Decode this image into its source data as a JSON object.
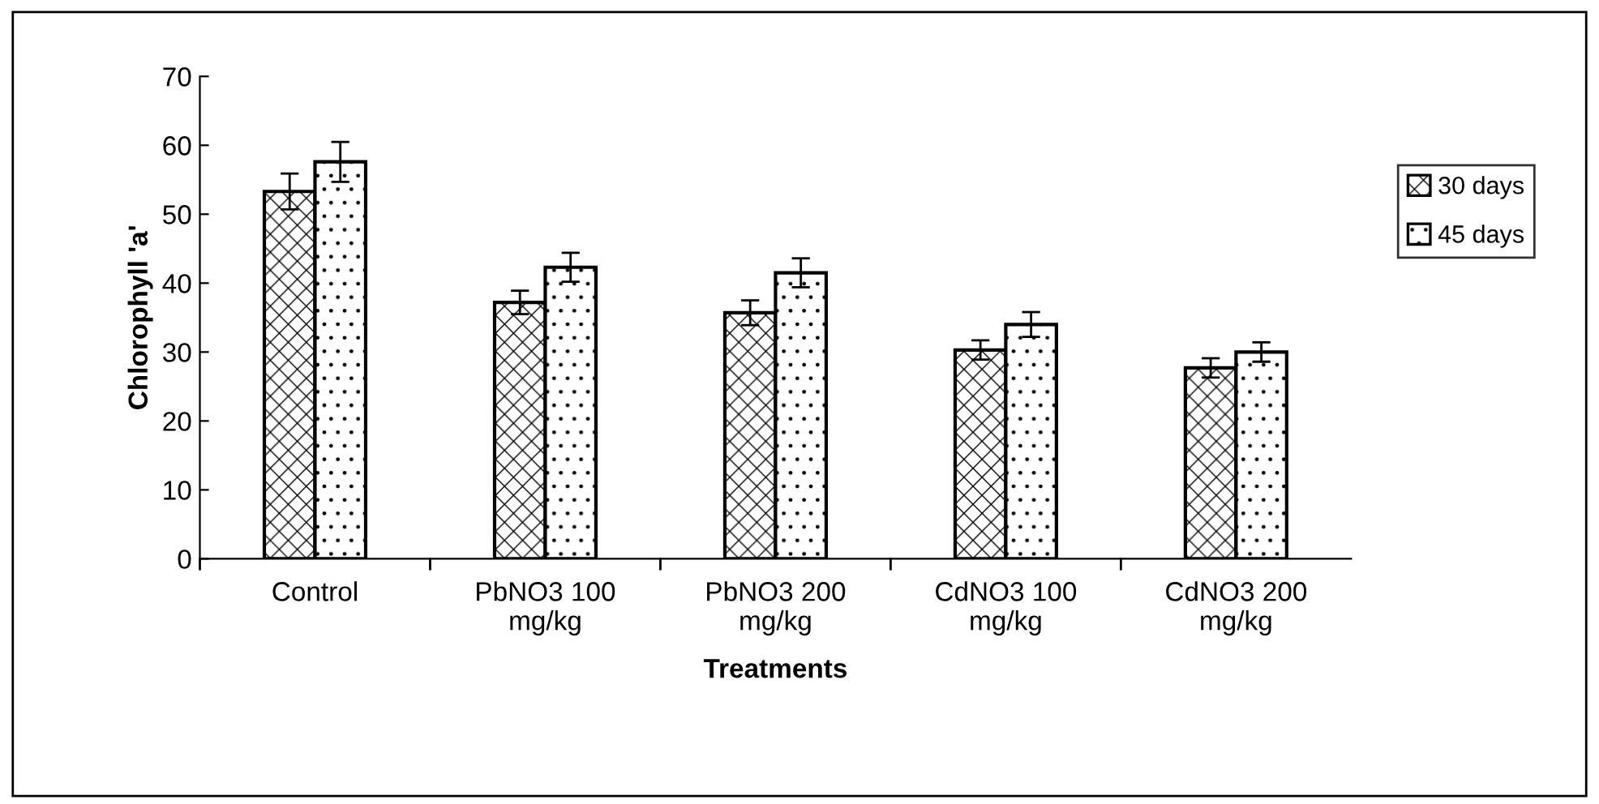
{
  "chart_data": {
    "type": "bar",
    "categories": [
      "Control",
      "PbNO3 100\nmg/kg",
      "PbNO3 200\nmg/kg",
      "CdNO3 100\nmg/kg",
      "CdNO3 200\nmg/kg"
    ],
    "series": [
      {
        "name": "30 days",
        "color": "#ffffff",
        "values": [
          53.3,
          37.2,
          35.7,
          30.3,
          27.7
        ],
        "errors": [
          2.6,
          1.7,
          1.8,
          1.4,
          1.4
        ]
      },
      {
        "name": "45 days",
        "color": "#ffffff",
        "values": [
          57.6,
          42.3,
          41.5,
          34.0,
          30.0
        ],
        "errors": [
          2.9,
          2.1,
          2.1,
          1.8,
          1.4
        ]
      }
    ],
    "xlabel": "Treatments",
    "ylabel": "Chlorophyll 'a'",
    "ylim": [
      0,
      70
    ],
    "yticks": [
      0,
      10,
      20,
      30,
      40,
      50,
      60,
      70
    ],
    "grid": false,
    "legend": "right"
  }
}
